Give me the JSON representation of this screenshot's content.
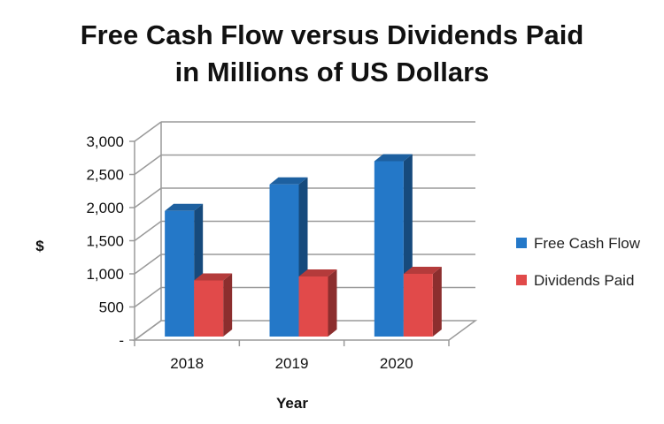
{
  "title": {
    "line1": "Free Cash Flow versus Dividends Paid",
    "line2": "in Millions of US Dollars"
  },
  "colors": {
    "free_cash_flow": "#2478c8",
    "dividends_paid": "#e14a4a",
    "grid": "#9a9a9a"
  },
  "chart_data": {
    "type": "bar",
    "title": "Free Cash Flow versus Dividends Paid in Millions of US Dollars",
    "categories": [
      "2018",
      "2019",
      "2020"
    ],
    "series": [
      {
        "name": "Free Cash Flow",
        "values": [
          1950,
          2350,
          2700
        ]
      },
      {
        "name": "Dividends Paid",
        "values": [
          900,
          960,
          1000
        ]
      }
    ],
    "xlabel": "Year",
    "ylabel": "$",
    "ylim": [
      0,
      3000
    ],
    "yticks": [
      0,
      500,
      1000,
      1500,
      2000,
      2500,
      3000
    ],
    "ytick_labels": [
      "-",
      "500",
      "1,000",
      "1,500",
      "2,000",
      "2,500",
      "3,000"
    ],
    "grid": true,
    "legend_position": "right",
    "style": "3d-clustered-column"
  }
}
